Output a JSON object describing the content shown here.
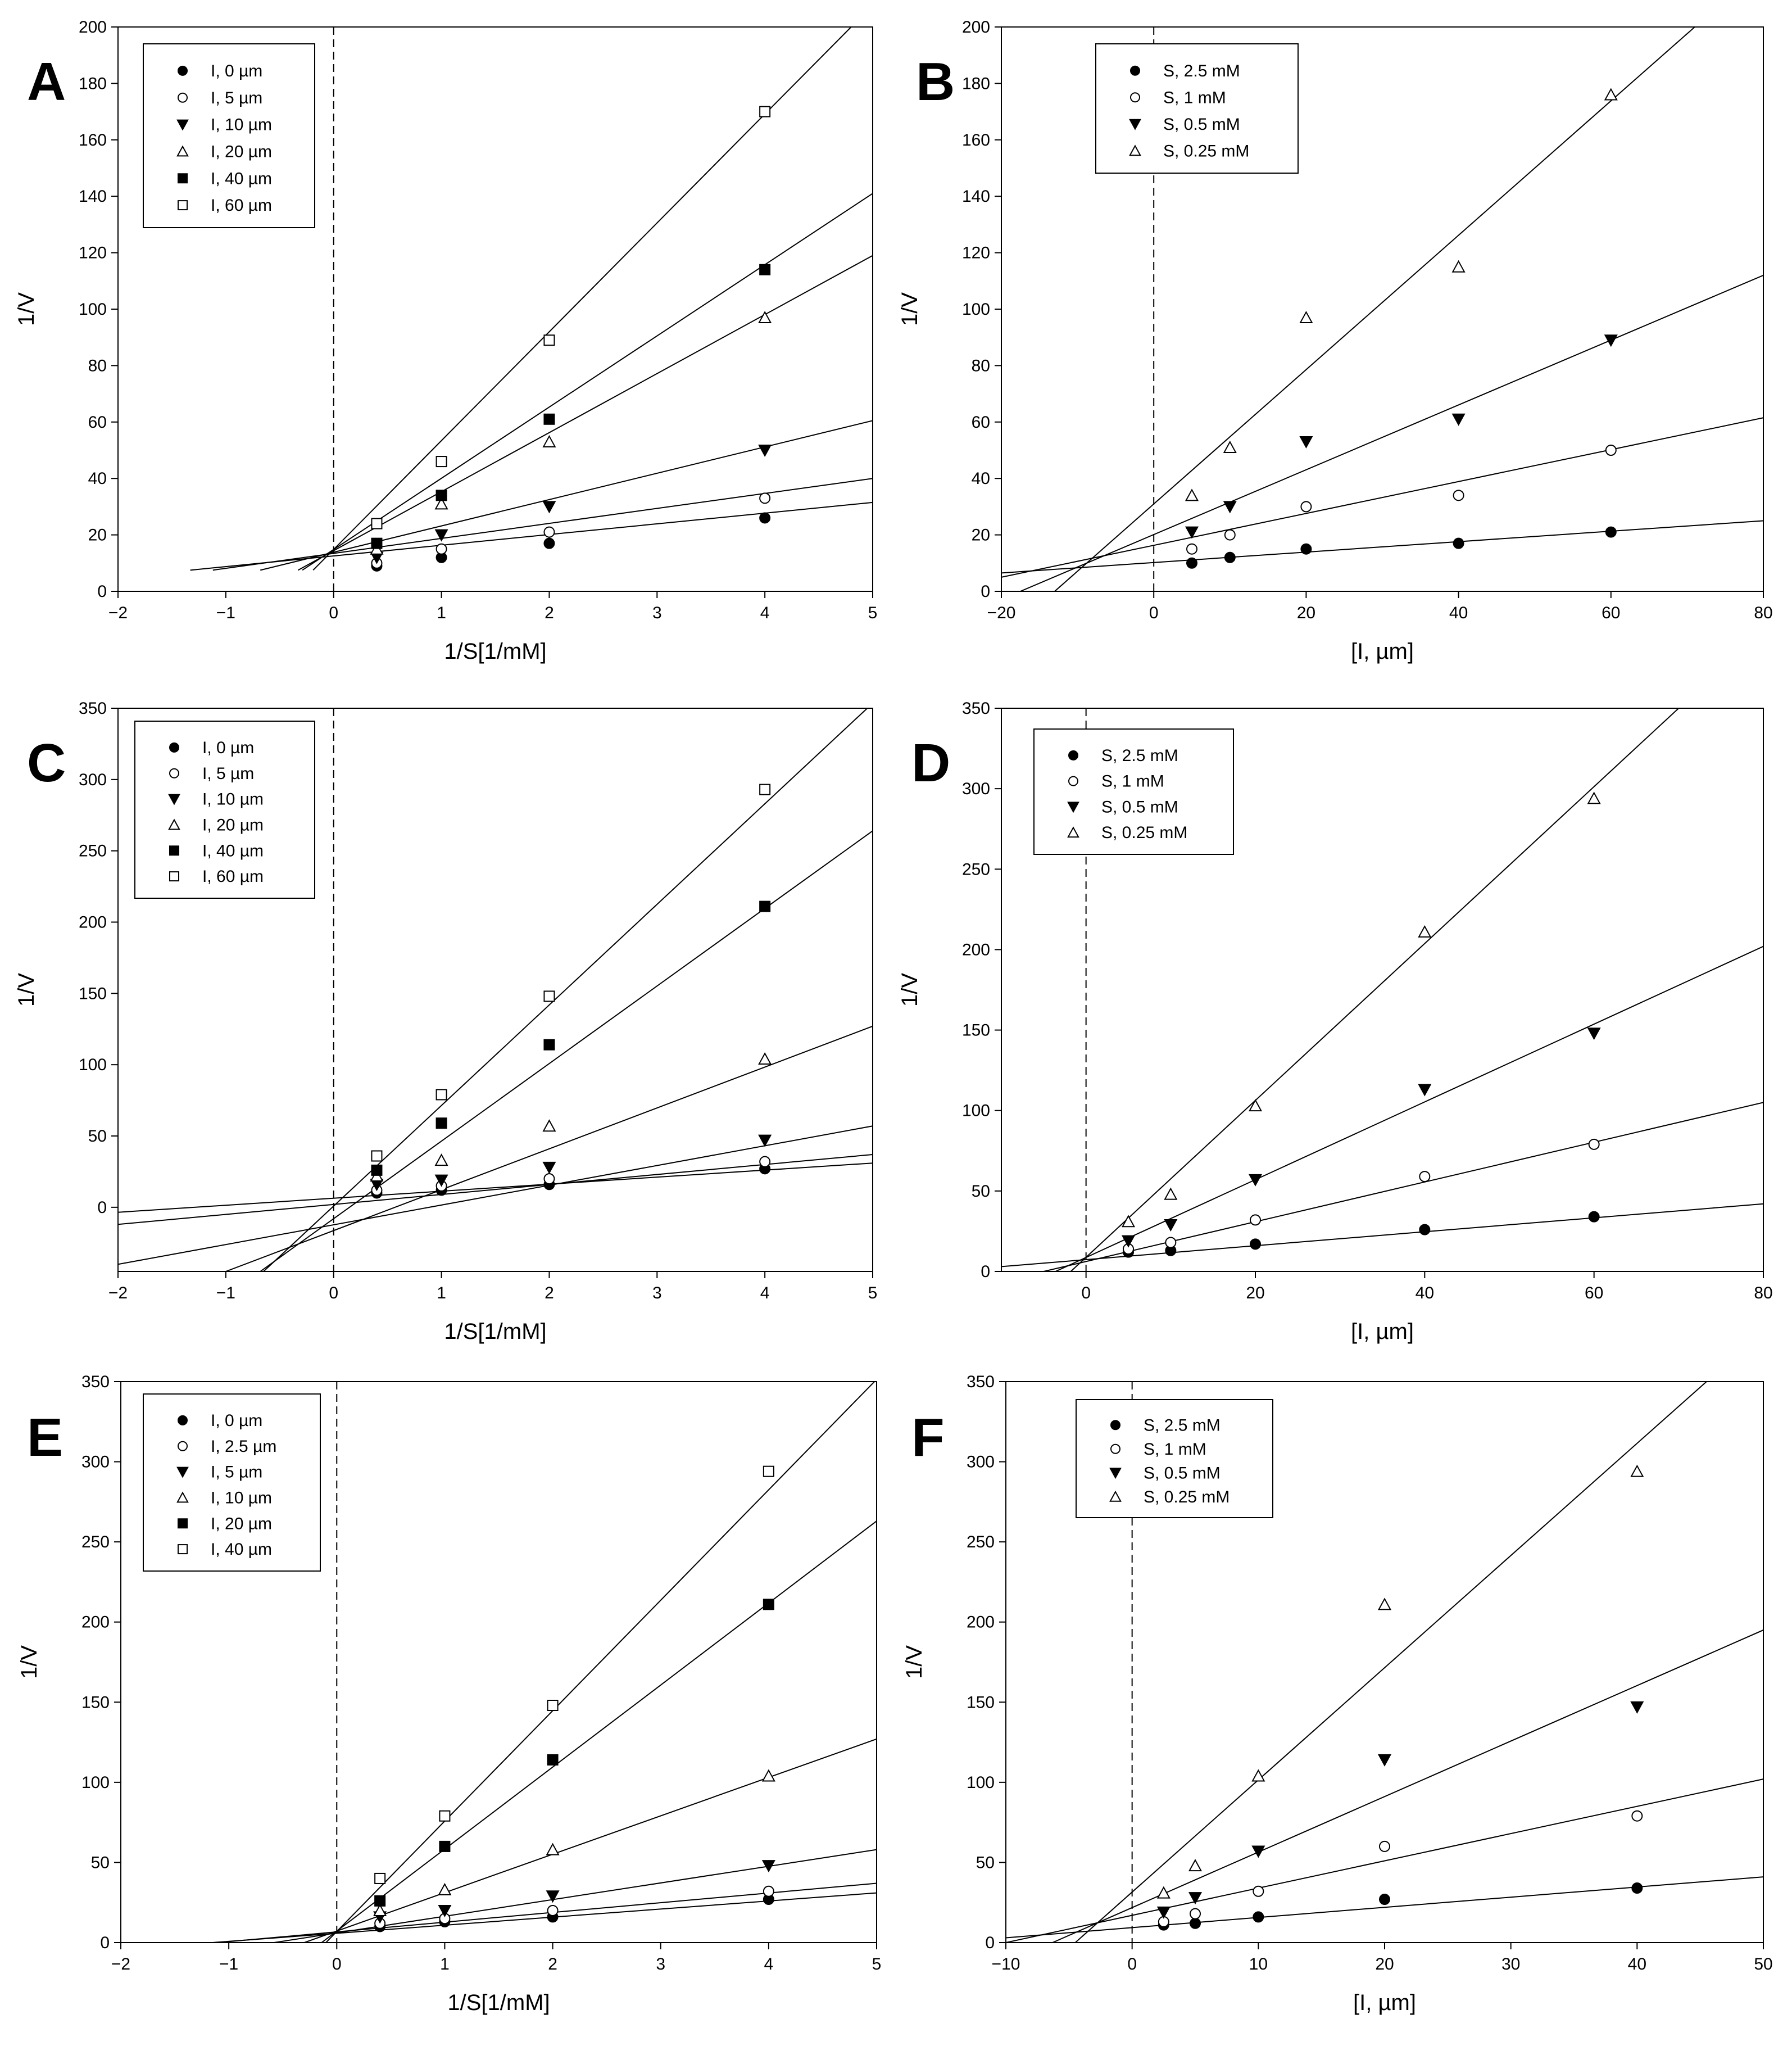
{
  "chart_data": [
    {
      "panel": "A",
      "type": "line",
      "xlabel": "1/S[1/mM]",
      "ylabel": "1/V",
      "xlim": [
        -2,
        5
      ],
      "ylim": [
        0,
        200
      ],
      "xticks": [
        "-2",
        "-1",
        "0",
        "1",
        "2",
        "3",
        "4",
        "5"
      ],
      "yticks": [
        "0",
        "20",
        "40",
        "60",
        "80",
        "100",
        "120",
        "140",
        "160",
        "180",
        "200"
      ],
      "x": [
        0.4,
        1,
        2,
        4
      ],
      "legend": "top-left",
      "series": [
        {
          "name": "I, 0 µm",
          "marker": "circle-filled",
          "values": [
            9,
            12,
            17,
            26
          ],
          "line": [
            -1.33,
            7.5,
            5,
            31.5
          ]
        },
        {
          "name": "I, 5 µm",
          "marker": "circle-open",
          "values": [
            10,
            15,
            21,
            33
          ],
          "line": [
            -1.12,
            7.5,
            5,
            40
          ]
        },
        {
          "name": "I, 10 µm",
          "marker": "triangle-down-filled",
          "values": [
            12,
            20,
            30,
            50
          ],
          "line": [
            -0.68,
            7.5,
            5,
            60.5
          ]
        },
        {
          "name": "I, 20 µm",
          "marker": "triangle-up-open",
          "values": [
            15,
            31,
            53,
            97
          ],
          "line": [
            -0.33,
            7.5,
            5,
            119
          ]
        },
        {
          "name": "I, 40 µm",
          "marker": "square-filled",
          "values": [
            17,
            34,
            61,
            114
          ],
          "line": [
            -0.29,
            7.5,
            5,
            141
          ]
        },
        {
          "name": "I, 60 µm",
          "marker": "square-open",
          "values": [
            24,
            46,
            89,
            170
          ],
          "line": [
            -0.19,
            7.5,
            4.8,
            200
          ]
        }
      ]
    },
    {
      "panel": "B",
      "type": "line",
      "xlabel": "[I, µm]",
      "ylabel": "1/V",
      "xlim": [
        -20,
        80
      ],
      "ylim": [
        0,
        200
      ],
      "xticks": [
        "-20",
        "0",
        "20",
        "40",
        "60",
        "80"
      ],
      "yticks": [
        "0",
        "20",
        "40",
        "60",
        "80",
        "100",
        "120",
        "140",
        "160",
        "180",
        "200"
      ],
      "x": [
        5,
        10,
        20,
        40,
        60
      ],
      "legend": "top-left",
      "series": [
        {
          "name": "S, 2.5 mM",
          "marker": "circle-filled",
          "values": [
            10,
            12,
            15,
            17,
            21
          ],
          "line": [
            -20,
            6.5,
            80,
            25
          ]
        },
        {
          "name": "S, 1 mM",
          "marker": "circle-open",
          "values": [
            15,
            20,
            30,
            34,
            50
          ],
          "line": [
            -20,
            5,
            80,
            61.5
          ]
        },
        {
          "name": "S, 0.5 mM",
          "marker": "triangle-down-filled",
          "values": [
            21,
            30,
            53,
            61,
            89
          ],
          "line": [
            -17.5,
            0,
            80,
            112
          ]
        },
        {
          "name": "S, 0.25 mM",
          "marker": "triangle-up-open",
          "values": [
            34,
            51,
            97,
            115,
            176
          ],
          "line": [
            -13,
            0,
            71,
            200
          ]
        }
      ]
    },
    {
      "panel": "C",
      "type": "line",
      "xlabel": "1/S[1/mM]",
      "ylabel": "1/V",
      "xlim": [
        -2,
        5
      ],
      "ylim": [
        -45,
        350
      ],
      "xticks": [
        "-2",
        "-1",
        "0",
        "1",
        "2",
        "3",
        "4",
        "5"
      ],
      "yticks": [
        "0",
        "50",
        "100",
        "150",
        "200",
        "250",
        "300",
        "350"
      ],
      "x": [
        0.4,
        1,
        2,
        4
      ],
      "legend": "top-left",
      "series": [
        {
          "name": "I, 0 µm",
          "marker": "circle-filled",
          "values": [
            10,
            12,
            16,
            27
          ],
          "line": [
            -2,
            -3.5,
            5,
            31
          ]
        },
        {
          "name": "I, 5 µm",
          "marker": "circle-open",
          "values": [
            12,
            15,
            20,
            32
          ],
          "line": [
            -2,
            -12,
            5,
            37
          ]
        },
        {
          "name": "I, 10 µm",
          "marker": "triangle-down-filled",
          "values": [
            16,
            19,
            28,
            47
          ],
          "line": [
            -2,
            -40,
            5,
            57
          ]
        },
        {
          "name": "I, 20 µm",
          "marker": "triangle-up-open",
          "values": [
            22,
            33,
            57,
            104
          ],
          "line": [
            -1.0,
            -45,
            5,
            127
          ]
        },
        {
          "name": "I, 40 µm",
          "marker": "square-filled",
          "values": [
            26,
            59,
            114,
            211
          ],
          "line": [
            -0.68,
            -45,
            5,
            264
          ]
        },
        {
          "name": "I, 60 µm",
          "marker": "square-open",
          "values": [
            36,
            79,
            148,
            293
          ],
          "line": [
            -0.65,
            -45,
            4.95,
            350
          ]
        }
      ]
    },
    {
      "panel": "D",
      "type": "line",
      "xlabel": "[I, µm]",
      "ylabel": "1/V",
      "xlim": [
        -10,
        80
      ],
      "ylim": [
        0,
        350
      ],
      "xticks": [
        "0",
        "20",
        "40",
        "60",
        "80"
      ],
      "yticks": [
        "0",
        "50",
        "100",
        "150",
        "200",
        "250",
        "300",
        "350"
      ],
      "x": [
        5,
        10,
        20,
        40,
        60
      ],
      "legend": "top-left",
      "series": [
        {
          "name": "S, 2.5 mM",
          "marker": "circle-filled",
          "values": [
            12,
            13,
            17,
            26,
            34
          ],
          "line": [
            -10,
            3,
            80,
            42
          ]
        },
        {
          "name": "S, 1 mM",
          "marker": "circle-open",
          "values": [
            14,
            18,
            32,
            59,
            79
          ],
          "line": [
            -5,
            0,
            80,
            105
          ]
        },
        {
          "name": "S, 0.5 mM",
          "marker": "triangle-down-filled",
          "values": [
            19,
            29,
            57,
            113,
            148
          ],
          "line": [
            -3.6,
            0,
            80,
            202
          ]
        },
        {
          "name": "S, 0.25 mM",
          "marker": "triangle-up-open",
          "values": [
            31,
            48,
            103,
            211,
            294
          ],
          "line": [
            -1.8,
            0,
            70,
            350
          ]
        }
      ]
    },
    {
      "panel": "E",
      "type": "line",
      "xlabel": "1/S[1/mM]",
      "ylabel": "1/V",
      "xlim": [
        -2,
        5
      ],
      "ylim": [
        0,
        350
      ],
      "xticks": [
        "-2",
        "-1",
        "0",
        "1",
        "2",
        "3",
        "4",
        "5"
      ],
      "yticks": [
        "0",
        "50",
        "100",
        "150",
        "200",
        "250",
        "300",
        "350"
      ],
      "x": [
        0.4,
        1,
        2,
        4
      ],
      "legend": "top-left",
      "series": [
        {
          "name": "I, 0 µm",
          "marker": "circle-filled",
          "values": [
            10,
            13,
            16,
            27
          ],
          "line": [
            -1.15,
            0,
            5,
            31
          ]
        },
        {
          "name": "I, 2.5 µm",
          "marker": "circle-open",
          "values": [
            12,
            15,
            20,
            32
          ],
          "line": [
            -1.1,
            0,
            5,
            37
          ]
        },
        {
          "name": "I, 5 µm",
          "marker": "triangle-down-filled",
          "values": [
            16,
            20,
            29,
            48
          ],
          "line": [
            -0.58,
            0,
            5,
            58
          ]
        },
        {
          "name": "I, 10 µm",
          "marker": "triangle-up-open",
          "values": [
            20,
            33,
            58,
            104
          ],
          "line": [
            -0.3,
            0,
            5,
            127
          ]
        },
        {
          "name": "I, 20 µm",
          "marker": "square-filled",
          "values": [
            26,
            60,
            114,
            211
          ],
          "line": [
            -0.14,
            0,
            5,
            263
          ]
        },
        {
          "name": "I, 40 µm",
          "marker": "square-open",
          "values": [
            40,
            79,
            148,
            294
          ],
          "line": [
            -0.1,
            0,
            4.98,
            350
          ]
        }
      ]
    },
    {
      "panel": "F",
      "type": "line",
      "xlabel": "[I, µm]",
      "ylabel": "1/V",
      "xlim": [
        -10,
        50
      ],
      "ylim": [
        0,
        350
      ],
      "xticks": [
        "-10",
        "0",
        "10",
        "20",
        "30",
        "40",
        "50"
      ],
      "yticks": [
        "0",
        "50",
        "100",
        "150",
        "200",
        "250",
        "300",
        "350"
      ],
      "x": [
        2.5,
        5,
        10,
        20,
        40
      ],
      "legend": "top-left",
      "series": [
        {
          "name": "S, 2.5 mM",
          "marker": "circle-filled",
          "values": [
            11,
            12,
            16,
            27,
            34
          ],
          "line": [
            -10,
            3,
            50,
            41
          ]
        },
        {
          "name": "S, 1 mM",
          "marker": "circle-open",
          "values": [
            13,
            18,
            32,
            60,
            79
          ],
          "line": [
            -10,
            0,
            50,
            102
          ]
        },
        {
          "name": "S, 0.5 mM",
          "marker": "triangle-down-filled",
          "values": [
            19,
            28,
            57,
            114,
            147
          ],
          "line": [
            -6.3,
            0,
            50,
            195
          ]
        },
        {
          "name": "S, 0.25 mM",
          "marker": "triangle-up-open",
          "values": [
            31,
            48,
            104,
            211,
            294
          ],
          "line": [
            -4.5,
            0,
            45.5,
            350
          ]
        }
      ]
    }
  ]
}
